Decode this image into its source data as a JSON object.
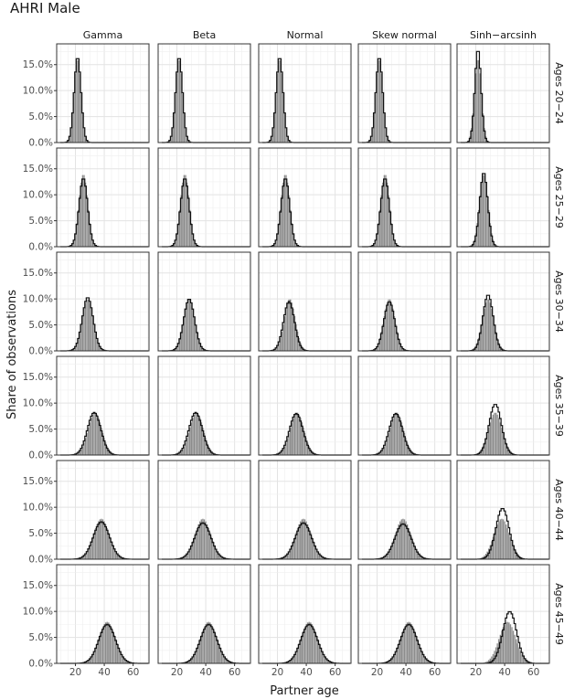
{
  "chart_data": {
    "type": "bar",
    "title": "AHRI Male",
    "xlabel": "Partner age",
    "ylabel": "Share of observations",
    "xlim": [
      7,
      71
    ],
    "ylim": [
      0,
      0.19
    ],
    "x_ticks": [
      20,
      40,
      60
    ],
    "x_tick_labels": [
      "20",
      "40",
      "60"
    ],
    "y_ticks": [
      0,
      0.05,
      0.1,
      0.15
    ],
    "y_tick_labels": [
      "0.0%",
      "5.0%",
      "10.0%",
      "15.0%"
    ],
    "grid": true,
    "columns": [
      "Gamma",
      "Beta",
      "Normal",
      "Skew normal",
      "Sinh−arcsinh"
    ],
    "rows": [
      "Ages 20−24",
      "Ages 25−29",
      "Ages 30−34",
      "Ages 35−39",
      "Ages 40−44",
      "Ages 45−49"
    ],
    "series_styles": {
      "observed": {
        "kind": "bars",
        "color": "#8c8c8c"
      },
      "fitted": {
        "kind": "step line",
        "color": "#111111"
      }
    },
    "observed": [
      {
        "mean": 21.5,
        "sd": 2.4,
        "peak": 0.162
      },
      {
        "mean": 25.5,
        "sd": 3.0,
        "peak": 0.14
      },
      {
        "mean": 28.5,
        "sd": 3.9,
        "peak": 0.1
      },
      {
        "mean": 33.5,
        "sd": 4.8,
        "peak": 0.082
      },
      {
        "mean": 38.0,
        "sd": 5.5,
        "peak": 0.078
      },
      {
        "mean": 42.0,
        "sd": 5.8,
        "peak": 0.08
      }
    ],
    "fitted": [
      [
        {
          "mean": 21.5,
          "sd": 2.4,
          "peak": 0.165
        },
        {
          "mean": 21.5,
          "sd": 2.4,
          "peak": 0.165
        },
        {
          "mean": 21.5,
          "sd": 2.4,
          "peak": 0.165
        },
        {
          "mean": 21.5,
          "sd": 2.4,
          "peak": 0.165
        },
        {
          "mean": 21.5,
          "sd": 2.2,
          "peak": 0.18
        }
      ],
      [
        {
          "mean": 25.5,
          "sd": 3.0,
          "peak": 0.132
        },
        {
          "mean": 25.5,
          "sd": 3.0,
          "peak": 0.132
        },
        {
          "mean": 25.5,
          "sd": 3.0,
          "peak": 0.132
        },
        {
          "mean": 25.5,
          "sd": 3.0,
          "peak": 0.132
        },
        {
          "mean": 25.5,
          "sd": 2.8,
          "peak": 0.143
        }
      ],
      [
        {
          "mean": 28.5,
          "sd": 3.8,
          "peak": 0.103
        },
        {
          "mean": 28.5,
          "sd": 3.8,
          "peak": 0.1
        },
        {
          "mean": 28.0,
          "sd": 3.8,
          "peak": 0.095
        },
        {
          "mean": 28.5,
          "sd": 3.8,
          "peak": 0.095
        },
        {
          "mean": 28.5,
          "sd": 3.6,
          "peak": 0.108
        }
      ],
      [
        {
          "mean": 33.0,
          "sd": 4.7,
          "peak": 0.082
        },
        {
          "mean": 33.0,
          "sd": 4.7,
          "peak": 0.082
        },
        {
          "mean": 33.0,
          "sd": 4.7,
          "peak": 0.08
        },
        {
          "mean": 33.0,
          "sd": 4.7,
          "peak": 0.08
        },
        {
          "mean": 33.5,
          "sd": 4.3,
          "peak": 0.098
        }
      ],
      [
        {
          "mean": 38.0,
          "sd": 5.6,
          "peak": 0.072
        },
        {
          "mean": 38.0,
          "sd": 5.6,
          "peak": 0.07
        },
        {
          "mean": 38.0,
          "sd": 5.6,
          "peak": 0.07
        },
        {
          "mean": 38.0,
          "sd": 5.6,
          "peak": 0.068
        },
        {
          "mean": 38.5,
          "sd": 4.6,
          "peak": 0.098
        }
      ],
      [
        {
          "mean": 42.0,
          "sd": 5.8,
          "peak": 0.075
        },
        {
          "mean": 42.0,
          "sd": 5.8,
          "peak": 0.075
        },
        {
          "mean": 42.0,
          "sd": 5.8,
          "peak": 0.075
        },
        {
          "mean": 42.0,
          "sd": 5.8,
          "peak": 0.075
        },
        {
          "mean": 43.5,
          "sd": 4.8,
          "peak": 0.1
        }
      ]
    ]
  }
}
